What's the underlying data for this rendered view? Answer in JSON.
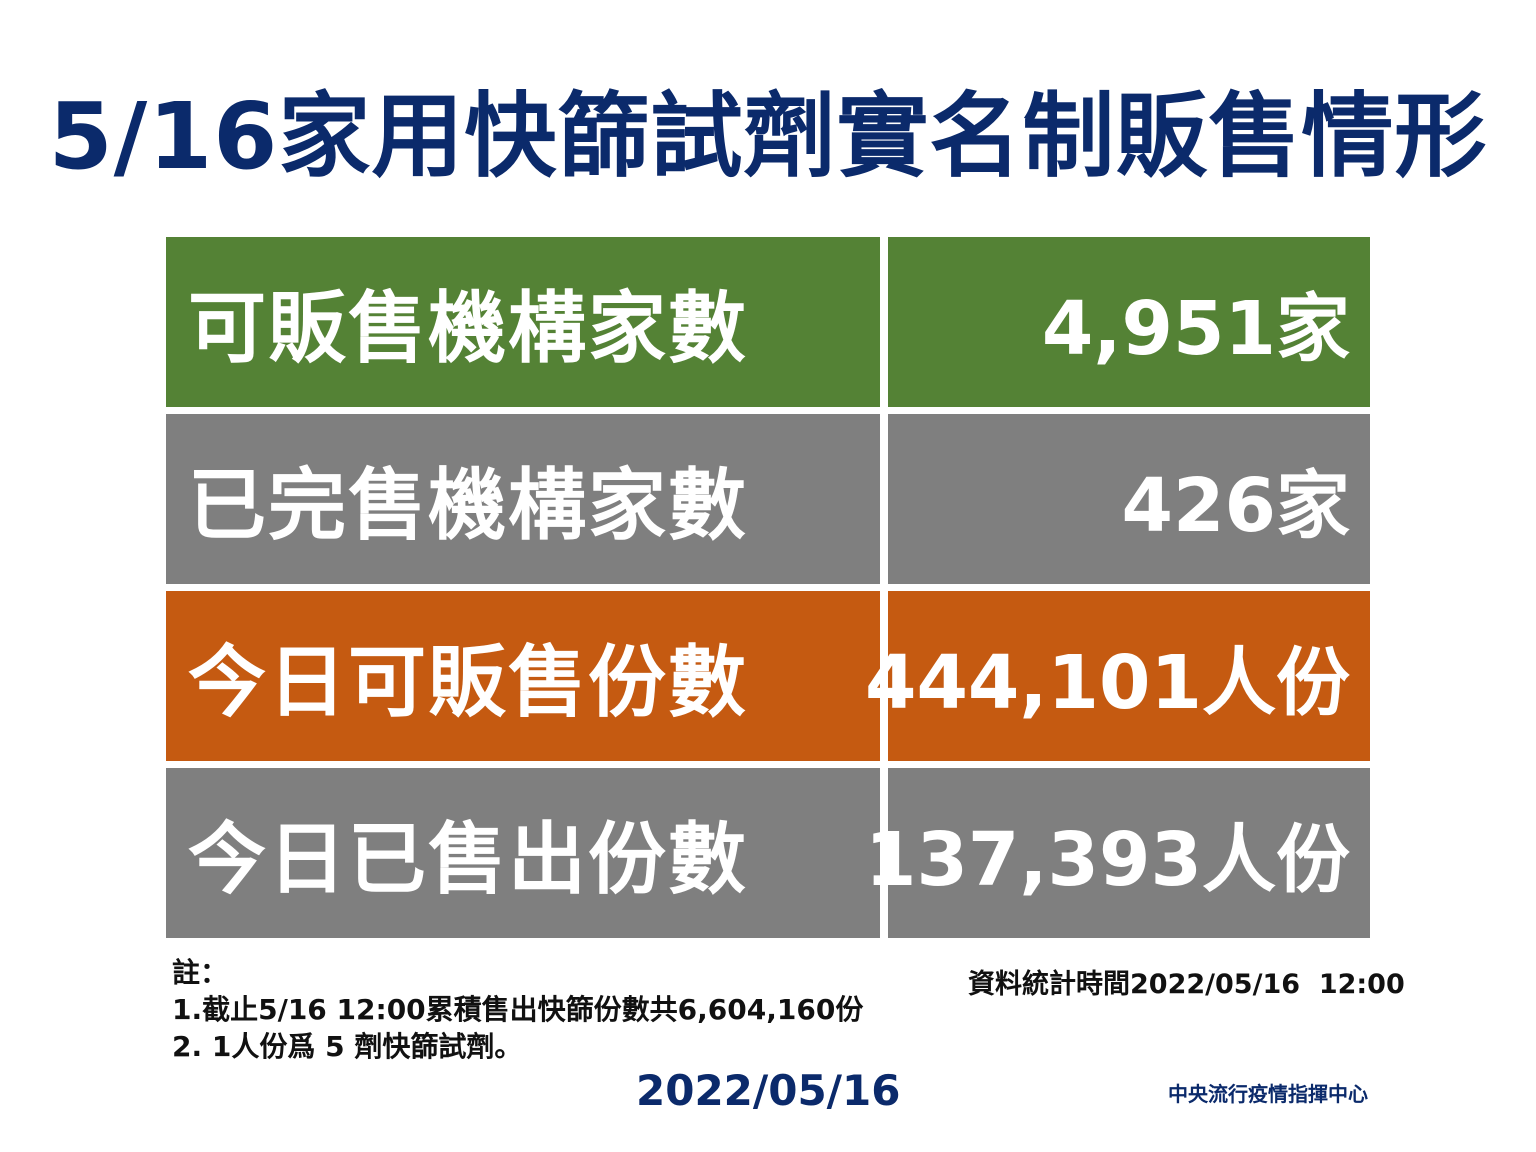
{
  "title": "5/16家用快篩試劑實名制販售情形",
  "rows": [
    {
      "label": "可販售機構家數",
      "value": "4,951家",
      "color": "#548235"
    },
    {
      "label": "已完售機構家數",
      "value": "426家",
      "color": "#7f7f7f"
    },
    {
      "label": "今日可販售份數",
      "value": "444,101人份",
      "color": "#c55a11"
    },
    {
      "label": "今日已售出份數",
      "value": "137,393人份",
      "color": "#7f7f7f"
    }
  ],
  "notes": {
    "heading": "註：",
    "line1": "1.截止5/16 12:00累積售出快篩份數共6,604,160份",
    "line2": "2. 1人份爲 5 劑快篩試劑。"
  },
  "timestamp": "資料統計時間2022/05/16  12:00",
  "date": "2022/05/16",
  "org": "中央流行疫情指揮中心"
}
